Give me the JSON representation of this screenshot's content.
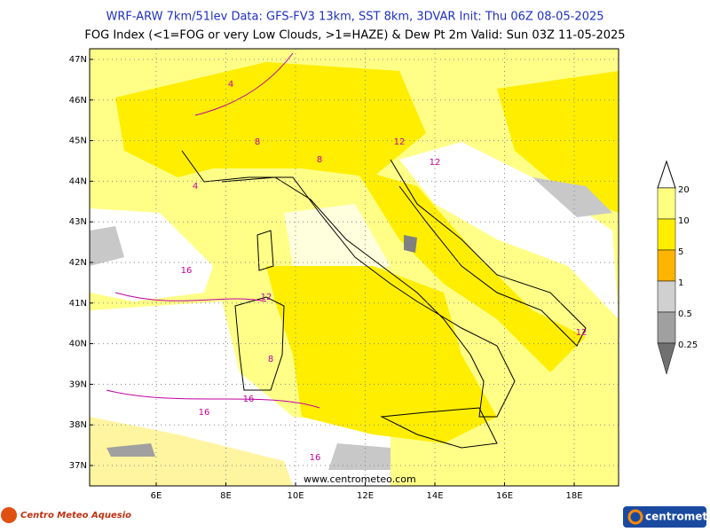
{
  "header": {
    "line1": "WRF-ARW 7km/51lev  Data: GFS-FV3 13km, SST 8km, 3DVAR  Init: Thu 06Z 08-05-2025",
    "line2": "FOG Index (<1=FOG or very Low Clouds, >1=HAZE) & Dew Pt 2m  Valid: Sun 03Z 11-05-2025"
  },
  "map": {
    "lat_labels": [
      "47N",
      "46N",
      "45N",
      "44N",
      "43N",
      "42N",
      "41N",
      "40N",
      "39N",
      "38N",
      "37N"
    ],
    "lon_labels": [
      "6E",
      "8E",
      "10E",
      "12E",
      "14E",
      "16E",
      "18E"
    ],
    "contour_labels": [
      "4",
      "8",
      "8",
      "12",
      "12",
      "16",
      "16",
      "16",
      "8",
      "12",
      "16",
      "4",
      "12"
    ],
    "watermark": "www.centrometeo.com"
  },
  "legend": {
    "levels": [
      "20",
      "10",
      "5",
      "1",
      "0.5",
      "0.25"
    ],
    "colors": [
      "#ffff80",
      "#ffee00",
      "#ffb400",
      "#d0d0d0",
      "#a0a0a0",
      "#707070"
    ]
  },
  "footer": {
    "left_logo": "Centro Meteo Aquesio",
    "right_logo": "centrometeo"
  }
}
